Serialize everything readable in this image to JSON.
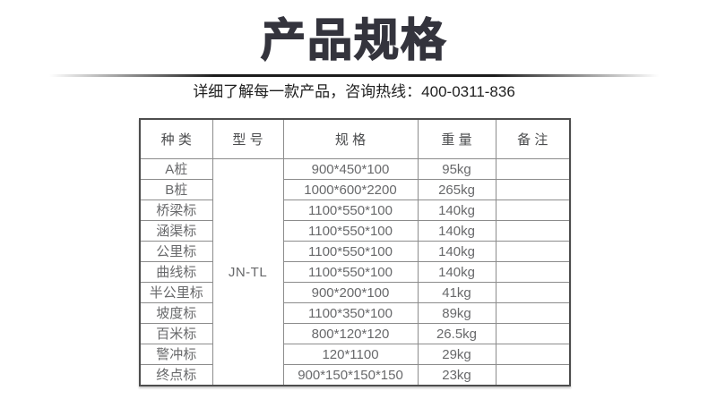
{
  "page": {
    "title": "产品规格",
    "subtitle": "详细了解每一款产品，咨询热线：400-0311-836",
    "hotline": "400-0311-836"
  },
  "colors": {
    "title_text": "#34343d",
    "subtitle_text": "#1e1e1e",
    "table_outer_border": "#4d4d4d",
    "table_inner_border": "#8c8c8c",
    "header_text": "#4b4c4e",
    "cell_text": "#68696b",
    "background": "#ffffff"
  },
  "table": {
    "headers": [
      "种 类",
      "型 号",
      "规 格",
      "重 量",
      "备 注"
    ],
    "model": "JN-TL",
    "rows": [
      {
        "type": "A桩",
        "spec": "900*450*100",
        "weight": "95kg",
        "note": ""
      },
      {
        "type": "B桩",
        "spec": "1000*600*2200",
        "weight": "265kg",
        "note": ""
      },
      {
        "type": "桥梁标",
        "spec": "1100*550*100",
        "weight": "140kg",
        "note": ""
      },
      {
        "type": "涵渠标",
        "spec": "1100*550*100",
        "weight": "140kg",
        "note": ""
      },
      {
        "type": "公里标",
        "spec": "1100*550*100",
        "weight": "140kg",
        "note": ""
      },
      {
        "type": "曲线标",
        "spec": "1100*550*100",
        "weight": "140kg",
        "note": ""
      },
      {
        "type": "半公里标",
        "spec": "900*200*100",
        "weight": "41kg",
        "note": ""
      },
      {
        "type": "坡度标",
        "spec": "1100*350*100",
        "weight": "89kg",
        "note": ""
      },
      {
        "type": "百米标",
        "spec": "800*120*120",
        "weight": "26.5kg",
        "note": ""
      },
      {
        "type": "警冲标",
        "spec": "120*1100",
        "weight": "29kg",
        "note": ""
      },
      {
        "type": "终点标",
        "spec": "900*150*150*150",
        "weight": "23kg",
        "note": ""
      }
    ]
  }
}
